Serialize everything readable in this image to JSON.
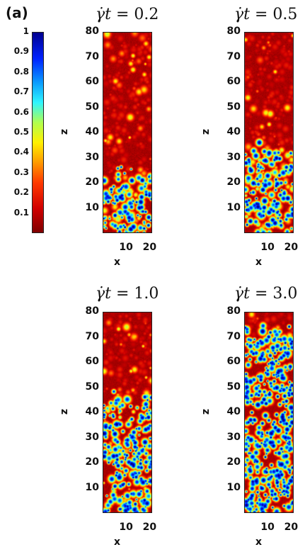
{
  "panel_label": "(a)",
  "colorbar": {
    "ticks": [
      "1",
      "0.9",
      "0.8",
      "0.7",
      "0.6",
      "0.5",
      "0.4",
      "0.3",
      "0.2",
      "0.1"
    ]
  },
  "panels": [
    {
      "time_label": "0.2"
    },
    {
      "time_label": "0.5"
    },
    {
      "time_label": "1.0"
    },
    {
      "time_label": "3.0"
    }
  ],
  "axes": {
    "xlabel": "x",
    "zlabel": "z",
    "x_ticks": [
      "10",
      "20"
    ],
    "z_ticks": [
      "80",
      "70",
      "60",
      "50",
      "40",
      "30",
      "20",
      "10"
    ]
  }
}
